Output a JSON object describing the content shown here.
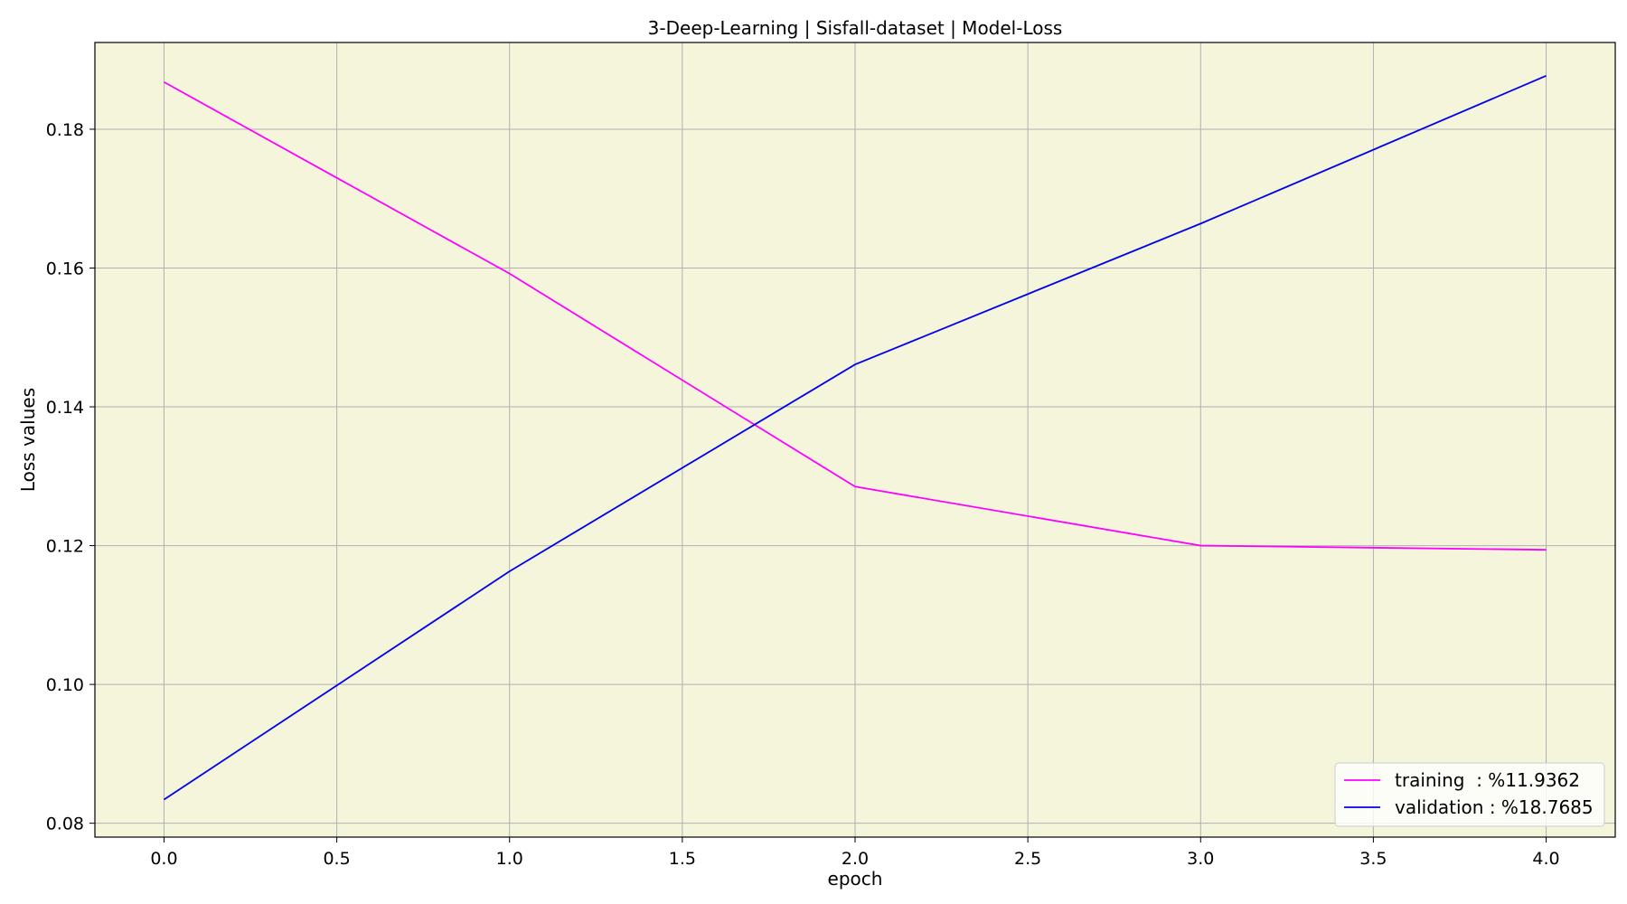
{
  "chart_data": {
    "type": "line",
    "title": "3-Deep-Learning | Sisfall-dataset  | Model-Loss",
    "xlabel": "epoch",
    "ylabel": "Loss values",
    "x": [
      0,
      1,
      2,
      3,
      4
    ],
    "xlim": [
      -0.2,
      4.2
    ],
    "ylim": [
      0.078,
      0.1925
    ],
    "xticks": [
      0.0,
      0.5,
      1.0,
      1.5,
      2.0,
      2.5,
      3.0,
      3.5,
      4.0
    ],
    "xtick_labels": [
      "0.0",
      "0.5",
      "1.0",
      "1.5",
      "2.0",
      "2.5",
      "3.0",
      "3.5",
      "4.0"
    ],
    "yticks": [
      0.08,
      0.1,
      0.12,
      0.14,
      0.16,
      0.18
    ],
    "ytick_labels": [
      "0.08",
      "0.10",
      "0.12",
      "0.14",
      "0.16",
      "0.18"
    ],
    "grid": true,
    "legend_position": "lower-right",
    "background_color": "#f5f5dc",
    "series": [
      {
        "name": "training  : %11.9362",
        "color": "#ff00ff",
        "values": [
          0.1868,
          0.1592,
          0.1285,
          0.12,
          0.1194
        ]
      },
      {
        "name": "validation : %18.7685",
        "color": "#0000ee",
        "values": [
          0.0834,
          0.1163,
          0.1461,
          0.1664,
          0.1877
        ]
      }
    ]
  }
}
